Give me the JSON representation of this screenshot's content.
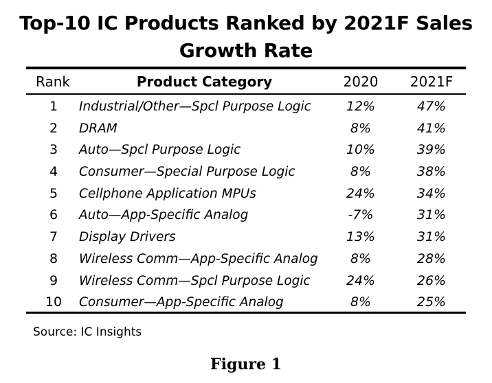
{
  "chart_data": {
    "type": "table",
    "title_line1": "Top-10 IC Products Ranked by 2021F Sales",
    "title_line2": "Growth Rate",
    "columns": [
      "Rank",
      "Product Category",
      "2020",
      "2021F"
    ],
    "rows": [
      {
        "rank": "1",
        "product": "Industrial/Other—Spcl Purpose Logic",
        "y2020": "12%",
        "y2021f": "47%"
      },
      {
        "rank": "2",
        "product": "DRAM",
        "y2020": "8%",
        "y2021f": "41%"
      },
      {
        "rank": "3",
        "product": "Auto—Spcl Purpose Logic",
        "y2020": "10%",
        "y2021f": "39%"
      },
      {
        "rank": "4",
        "product": "Consumer—Special Purpose Logic",
        "y2020": "8%",
        "y2021f": "38%"
      },
      {
        "rank": "5",
        "product": "Cellphone Application MPUs",
        "y2020": "24%",
        "y2021f": "34%"
      },
      {
        "rank": "6",
        "product": "Auto—App-Specific Analog",
        "y2020": "-7%",
        "y2021f": "31%"
      },
      {
        "rank": "7",
        "product": "Display Drivers",
        "y2020": "13%",
        "y2021f": "31%"
      },
      {
        "rank": "8",
        "product": "Wireless Comm—App-Specific Analog",
        "y2020": "8%",
        "y2021f": "28%"
      },
      {
        "rank": "9",
        "product": "Wireless Comm—Spcl Purpose Logic",
        "y2020": "24%",
        "y2021f": "26%"
      },
      {
        "rank": "10",
        "product": "Consumer—App-Specific Analog",
        "y2020": "8%",
        "y2021f": "25%"
      }
    ],
    "source": "Source:  IC Insights",
    "caption": "Figure 1"
  }
}
